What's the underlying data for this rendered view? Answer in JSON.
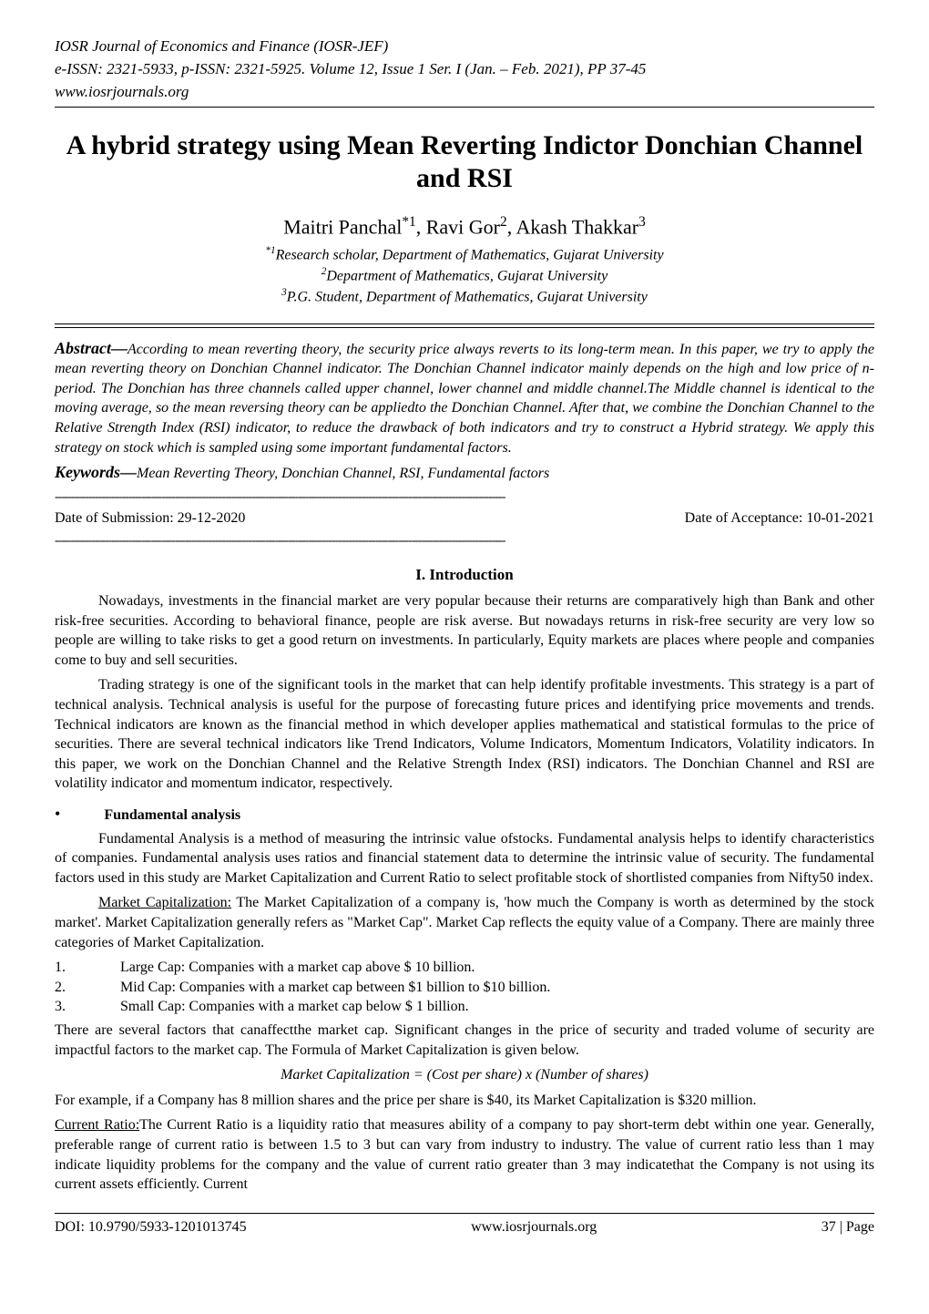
{
  "journal": {
    "line1": "IOSR Journal of Economics and Finance (IOSR-JEF)",
    "line2": "e-ISSN: 2321-5933, p-ISSN: 2321-5925. Volume 12, Issue 1 Ser. I (Jan. – Feb. 2021), PP 37-45",
    "line3": "www.iosrjournals.org"
  },
  "title": "A hybrid strategy using Mean Reverting Indictor Donchian Channel and RSI",
  "authors_html": "Maitri Panchal<sup>*1</sup>, Ravi Gor<sup>2</sup>, Akash Thakkar<sup>3</sup>",
  "affiliations": {
    "a1": "*1Research scholar, Department of Mathematics, Gujarat University",
    "a2": "2Department of Mathematics, Gujarat University",
    "a3": "3P.G. Student, Department of Mathematics, Gujarat University"
  },
  "abstract": {
    "label": "Abstract—",
    "text": "According to mean reverting theory, the security price always reverts to its long-term mean. In this paper, we try to apply the mean reverting theory on Donchian Channel indicator. The Donchian Channel indicator mainly depends on the high and low price of n-period. The Donchian has three channels called upper channel, lower channel and middle channel.The Middle channel is identical to the moving average, so the mean reversing theory can be appliedto the Donchian Channel. After that, we combine the Donchian Channel to the Relative Strength Index (RSI) indicator, to reduce the drawback of both indicators and try to construct a Hybrid strategy. We apply this strategy on stock which is sampled using some important fundamental factors."
  },
  "keywords": {
    "label": "Keywords—",
    "text": "Mean Reverting Theory, Donchian Channel, RSI, Fundamental factors"
  },
  "dates": {
    "submission": "Date of Submission: 29-12-2020",
    "acceptance": "Date of Acceptance: 10-01-2021"
  },
  "section1": {
    "header": "I.   Introduction",
    "p1": "Nowadays, investments in the financial market are very popular because their returns are comparatively high than Bank and other risk-free securities. According to behavioral finance, people are risk averse. But nowadays returns in risk-free security are very low so people are willing to take risks to get a good return on investments. In particularly, Equity markets are places where people and companies come to buy and sell securities.",
    "p2": "Trading strategy is one of the significant tools in the market that can help identify profitable investments. This strategy is a part of technical analysis.  Technical analysis is useful for the purpose of forecasting future prices and identifying price movements and trends. Technical indicators are known as the financial method in which developer applies mathematical and statistical formulas to the price of securities. There are several technical indicators like Trend Indicators, Volume Indicators, Momentum Indicators, Volatility indicators. In this paper, we work on the Donchian Channel and the Relative Strength Index (RSI) indicators. The Donchian Channel and RSI are volatility indicator and momentum indicator, respectively."
  },
  "fundamental": {
    "heading": "Fundamental analysis",
    "p1": "Fundamental Analysis is a method of measuring the intrinsic value ofstocks. Fundamental analysis helps to identify characteristics of companies. Fundamental analysis uses ratios and financial statement data to determine the intrinsic value of security. The fundamental factors used in this study are Market Capitalization and Current Ratio to select profitable stock of shortlisted companies from Nifty50 index.",
    "mc_label": "Market Capitalization:",
    "mc_text": " The Market Capitalization of a company is, 'how much the Company is worth as determined by the stock market'. Market Capitalization generally refers as \"Market Cap\". Market Cap reflects the equity value of a Company. There are mainly three categories of Market Capitalization.",
    "list": {
      "n1": "1.",
      "t1": "Large Cap: Companies with a market cap above $ 10 billion.",
      "n2": "2.",
      "t2": "Mid Cap: Companies with a market cap between $1 billion to $10 billion.",
      "n3": "3.",
      "t3": "Small Cap: Companies with a market cap below $ 1 billion."
    },
    "p_after_list": "There are several factors that canaffectthe market cap. Significant changes in the price of security and traded volume of security are impactful factors to the market cap. The Formula of Market Capitalization is given below.",
    "formula": "Market Capitalization  =  (Cost per share) x (Number of shares)",
    "p_example": "For example, if a Company has 8 million shares and the price per share is $40, its Market Capitalization is $320 million.",
    "cr_label": "Current Ratio:",
    "cr_text": "The Current Ratio is a liquidity ratio that measures ability of a company to pay short-term debt within one year. Generally, preferable range of current ratio is between 1.5 to 3 but can vary from industry to industry. The value of current ratio less than 1 may indicate liquidity problems for the company and the value of current ratio greater than 3 may indicatethat the Company is not using its current assets efficiently. Current"
  },
  "footer": {
    "doi": "DOI: 10.9790/5933-1201013745",
    "site": "www.iosrjournals.org",
    "page": "37 | Page"
  },
  "dash": "---------------------------------------------------------------------------------------------------------------------------------------"
}
